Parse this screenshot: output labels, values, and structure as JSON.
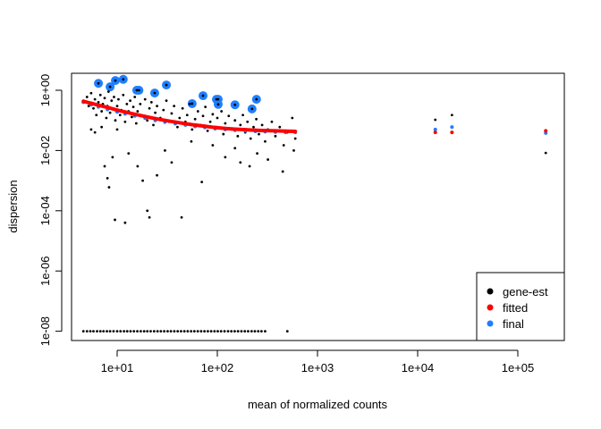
{
  "chart_data": {
    "type": "scatter",
    "title": "",
    "xlabel": "mean of normalized counts",
    "ylabel": "dispersion",
    "xscale": "log10",
    "yscale": "log10",
    "xlim": [
      3.5,
      250000
    ],
    "ylim": [
      3e-09,
      3.6
    ],
    "xticks": [
      {
        "value": 10,
        "label": "1e+01"
      },
      {
        "value": 100,
        "label": "1e+02"
      },
      {
        "value": 1000,
        "label": "1e+03"
      },
      {
        "value": 10000,
        "label": "1e+04"
      },
      {
        "value": 100000,
        "label": "1e+05"
      }
    ],
    "yticks": [
      {
        "value": 1,
        "label": "1e+00"
      },
      {
        "value": 0.01,
        "label": "1e-02"
      },
      {
        "value": 0.0001,
        "label": "1e-04"
      },
      {
        "value": 1e-06,
        "label": "1e-06"
      },
      {
        "value": 1e-08,
        "label": "1e-08"
      }
    ],
    "legend": {
      "position": "bottom-right",
      "entries": [
        {
          "label": "gene-est",
          "color": "#000000"
        },
        {
          "label": "fitted",
          "color": "#FF0000"
        },
        {
          "label": "final",
          "color": "#1E7FFF"
        }
      ]
    },
    "series": [
      {
        "name": "gene-est",
        "color": "#000000",
        "points": [
          [
            4.6,
            0.45
          ],
          [
            5,
            0.6
          ],
          [
            5.2,
            0.3
          ],
          [
            5.5,
            0.8
          ],
          [
            5.8,
            0.25
          ],
          [
            6,
            0.5
          ],
          [
            6.2,
            0.15
          ],
          [
            6.5,
            0.4
          ],
          [
            6.8,
            0.7
          ],
          [
            7,
            0.2
          ],
          [
            7.2,
            0.35
          ],
          [
            7.5,
            0.55
          ],
          [
            7.8,
            0.12
          ],
          [
            8,
            0.3
          ],
          [
            8.2,
            0.9
          ],
          [
            8.5,
            0.18
          ],
          [
            8.8,
            0.45
          ],
          [
            9,
            0.25
          ],
          [
            9.3,
            0.6
          ],
          [
            9.6,
            0.1
          ],
          [
            10,
            0.3
          ],
          [
            10.3,
            0.5
          ],
          [
            10.7,
            0.15
          ],
          [
            11,
            0.22
          ],
          [
            11.5,
            0.7
          ],
          [
            12,
            0.09
          ],
          [
            12.5,
            0.35
          ],
          [
            13,
            0.2
          ],
          [
            13.5,
            0.45
          ],
          [
            14,
            0.13
          ],
          [
            14.5,
            0.28
          ],
          [
            15,
            0.6
          ],
          [
            15.5,
            0.08
          ],
          [
            16,
            0.2
          ],
          [
            17,
            0.35
          ],
          [
            18,
            0.14
          ],
          [
            19,
            0.5
          ],
          [
            20,
            0.1
          ],
          [
            21,
            0.25
          ],
          [
            22,
            0.4
          ],
          [
            23,
            0.07
          ],
          [
            24,
            0.18
          ],
          [
            25,
            0.3
          ],
          [
            27,
            0.12
          ],
          [
            29,
            0.22
          ],
          [
            31,
            0.45
          ],
          [
            33,
            0.09
          ],
          [
            35,
            0.17
          ],
          [
            37,
            0.3
          ],
          [
            40,
            0.06
          ],
          [
            42,
            0.12
          ],
          [
            45,
            0.25
          ],
          [
            48,
            0.09
          ],
          [
            50,
            0.15
          ],
          [
            53,
            0.35
          ],
          [
            56,
            0.05
          ],
          [
            60,
            0.11
          ],
          [
            64,
            0.2
          ],
          [
            68,
            0.07
          ],
          [
            72,
            0.14
          ],
          [
            76,
            0.28
          ],
          [
            80,
            0.045
          ],
          [
            85,
            0.09
          ],
          [
            90,
            0.16
          ],
          [
            95,
            0.06
          ],
          [
            100,
            0.12
          ],
          [
            110,
            0.2
          ],
          [
            115,
            0.035
          ],
          [
            120,
            0.08
          ],
          [
            130,
            0.14
          ],
          [
            140,
            0.05
          ],
          [
            150,
            0.1
          ],
          [
            160,
            0.03
          ],
          [
            170,
            0.07
          ],
          [
            180,
            0.15
          ],
          [
            190,
            0.04
          ],
          [
            200,
            0.09
          ],
          [
            215,
            0.025
          ],
          [
            230,
            0.06
          ],
          [
            245,
            0.11
          ],
          [
            260,
            0.035
          ],
          [
            280,
            0.07
          ],
          [
            300,
            0.02
          ],
          [
            320,
            0.05
          ],
          [
            350,
            0.09
          ],
          [
            380,
            0.03
          ],
          [
            420,
            0.06
          ],
          [
            460,
            0.015
          ],
          [
            500,
            0.04
          ],
          [
            560,
            0.12
          ],
          [
            600,
            0.025
          ],
          [
            5.5,
            0.05
          ],
          [
            6,
            0.04
          ],
          [
            7,
            0.06
          ],
          [
            7.5,
            0.003
          ],
          [
            8,
            0.0012
          ],
          [
            8.3,
            0.0006
          ],
          [
            9,
            0.006
          ],
          [
            9.5,
            5e-05
          ],
          [
            10,
            0.05
          ],
          [
            12,
            4e-05
          ],
          [
            13,
            0.008
          ],
          [
            16,
            0.003
          ],
          [
            18,
            0.001
          ],
          [
            20,
            0.0001
          ],
          [
            21,
            6e-05
          ],
          [
            25,
            0.0015
          ],
          [
            30,
            0.01
          ],
          [
            35,
            0.004
          ],
          [
            44,
            6e-05
          ],
          [
            55,
            0.02
          ],
          [
            70,
            0.0009
          ],
          [
            90,
            0.015
          ],
          [
            120,
            0.006
          ],
          [
            150,
            0.012
          ],
          [
            170,
            0.004
          ],
          [
            210,
            0.003
          ],
          [
            250,
            0.008
          ],
          [
            320,
            0.005
          ],
          [
            450,
            0.002
          ],
          [
            580,
            0.01
          ],
          [
            15000,
            0.105
          ],
          [
            22000,
            0.15
          ],
          [
            190000,
            0.0083
          ]
        ]
      },
      {
        "name": "gene-est-zero",
        "color": "#000000",
        "dispersion": 1e-08,
        "x": [
          4.6,
          5,
          5.4,
          5.8,
          6.3,
          6.8,
          7.3,
          7.9,
          8.5,
          9.2,
          10,
          10.8,
          11.7,
          12.6,
          13.6,
          14.7,
          15.9,
          17.2,
          18.6,
          20,
          21.6,
          23.4,
          25.3,
          27.3,
          29.5,
          31.9,
          34.4,
          37.2,
          40.2,
          43.4,
          46.9,
          50.6,
          54.7,
          59,
          63.8,
          68.9,
          74.4,
          80.4,
          86.8,
          93.7,
          101,
          109,
          118,
          128,
          138,
          149,
          161,
          174,
          188,
          203,
          220,
          237,
          256,
          276,
          300,
          500
        ]
      },
      {
        "name": "fitted",
        "color": "#FF0000",
        "points": [
          [
            4.6,
            0.43
          ],
          [
            5.5,
            0.37
          ],
          [
            6.5,
            0.32
          ],
          [
            8,
            0.27
          ],
          [
            10,
            0.22
          ],
          [
            12,
            0.19
          ],
          [
            15,
            0.16
          ],
          [
            19,
            0.135
          ],
          [
            24,
            0.115
          ],
          [
            30,
            0.1
          ],
          [
            38,
            0.088
          ],
          [
            48,
            0.078
          ],
          [
            60,
            0.07
          ],
          [
            75,
            0.064
          ],
          [
            95,
            0.058
          ],
          [
            120,
            0.054
          ],
          [
            150,
            0.051
          ],
          [
            190,
            0.049
          ],
          [
            240,
            0.047
          ],
          [
            300,
            0.046
          ],
          [
            380,
            0.045
          ],
          [
            480,
            0.044
          ],
          [
            600,
            0.043
          ],
          [
            15000,
            0.04
          ],
          [
            22000,
            0.04
          ],
          [
            190000,
            0.045
          ]
        ]
      },
      {
        "name": "final",
        "color": "#1E7FFF",
        "points": [
          [
            4.6,
            0.4
          ],
          [
            5.5,
            0.33
          ],
          [
            6.5,
            0.28
          ],
          [
            8,
            0.23
          ],
          [
            10,
            0.19
          ],
          [
            12,
            0.165
          ],
          [
            15,
            0.14
          ],
          [
            19,
            0.118
          ],
          [
            24,
            0.1
          ],
          [
            30,
            0.088
          ],
          [
            38,
            0.078
          ],
          [
            48,
            0.07
          ],
          [
            60,
            0.063
          ],
          [
            75,
            0.058
          ],
          [
            95,
            0.053
          ],
          [
            120,
            0.05
          ],
          [
            150,
            0.047
          ],
          [
            190,
            0.045
          ],
          [
            240,
            0.043
          ],
          [
            300,
            0.042
          ],
          [
            380,
            0.041
          ],
          [
            480,
            0.04
          ],
          [
            600,
            0.04
          ],
          [
            15000,
            0.05
          ],
          [
            22000,
            0.06
          ],
          [
            190000,
            0.038
          ]
        ]
      },
      {
        "name": "final-outliers",
        "color": "#1E7FFF",
        "points": [
          [
            6.5,
            1.7
          ],
          [
            8.5,
            1.3
          ],
          [
            9.6,
            2.1
          ],
          [
            11.5,
            2.3
          ],
          [
            15.7,
            1.0
          ],
          [
            16.5,
            1.0
          ],
          [
            23.7,
            0.81
          ],
          [
            31,
            1.5
          ],
          [
            56,
            0.36
          ],
          [
            72,
            0.66
          ],
          [
            98,
            0.5
          ],
          [
            102,
            0.5
          ],
          [
            102,
            0.34
          ],
          [
            150,
            0.33
          ],
          [
            222,
            0.24
          ],
          [
            246,
            0.5
          ]
        ]
      }
    ]
  }
}
